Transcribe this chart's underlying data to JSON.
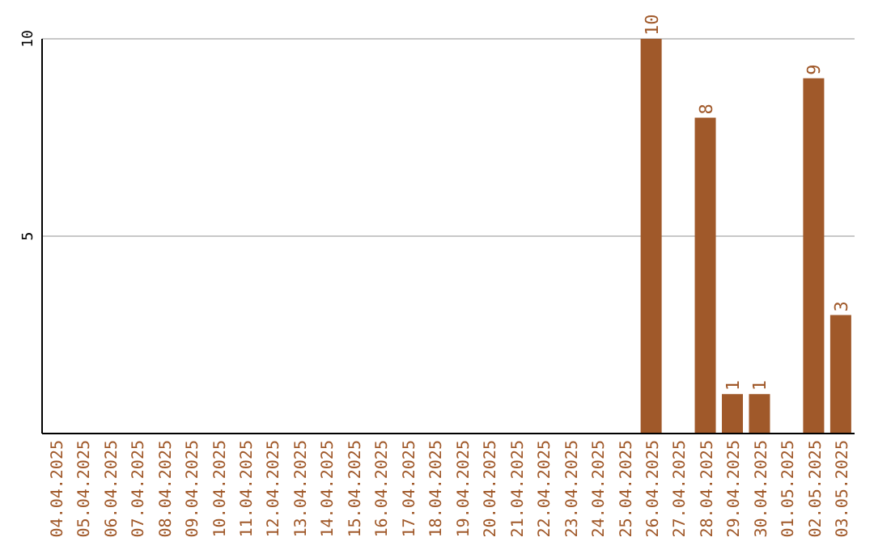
{
  "chart_data": {
    "type": "bar",
    "categories": [
      "04.04.2025",
      "05.04.2025",
      "06.04.2025",
      "07.04.2025",
      "08.04.2025",
      "09.04.2025",
      "10.04.2025",
      "11.04.2025",
      "12.04.2025",
      "13.04.2025",
      "14.04.2025",
      "15.04.2025",
      "16.04.2025",
      "17.04.2025",
      "18.04.2025",
      "19.04.2025",
      "20.04.2025",
      "21.04.2025",
      "22.04.2025",
      "23.04.2025",
      "24.04.2025",
      "25.04.2025",
      "26.04.2025",
      "27.04.2025",
      "28.04.2025",
      "29.04.2025",
      "30.04.2025",
      "01.05.2025",
      "02.05.2025",
      "03.05.2025"
    ],
    "values": [
      0,
      0,
      0,
      0,
      0,
      0,
      0,
      0,
      0,
      0,
      0,
      0,
      0,
      0,
      0,
      0,
      0,
      0,
      0,
      0,
      0,
      0,
      10,
      0,
      8,
      1,
      1,
      0,
      9,
      3
    ],
    "value_labels": [
      null,
      null,
      null,
      null,
      null,
      null,
      null,
      null,
      null,
      null,
      null,
      null,
      null,
      null,
      null,
      null,
      null,
      null,
      null,
      null,
      null,
      null,
      "10",
      null,
      "8",
      "1",
      "1",
      null,
      "9",
      "3"
    ],
    "color": "#a0592a",
    "ylim": [
      0,
      10
    ],
    "yticks": [
      5,
      10
    ],
    "grid": "y"
  }
}
